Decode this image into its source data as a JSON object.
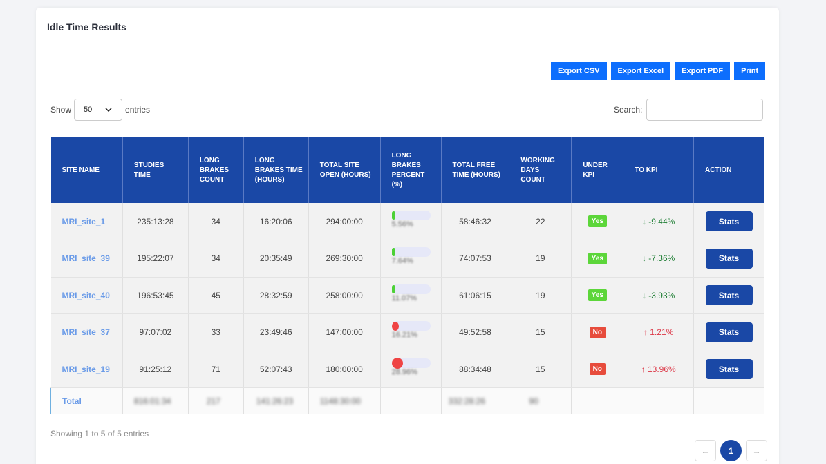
{
  "title": "Idle Time Results",
  "export_buttons": [
    "Export CSV",
    "Export Excel",
    "Export PDF",
    "Print"
  ],
  "length": {
    "show_label": "Show",
    "value": "50",
    "entries_label": "entries"
  },
  "search": {
    "label": "Search:",
    "placeholder": ""
  },
  "columns": [
    "SITE NAME",
    "STUDIES TIME",
    "LONG BRAKES COUNT",
    "LONG BRAKES TIME (HOURS)",
    "TOTAL SITE OPEN (HOURS)",
    "LONG BRAKES PERCENT (%)",
    "TOTAL FREE TIME (HOURS)",
    "WORKING DAYS COUNT",
    "UNDER KPI",
    "TO KPI",
    "ACTION"
  ],
  "rows": [
    {
      "site": "MRI_site_1",
      "studies": "235:13:28",
      "lb_count": "34",
      "lb_time": "16:20:06",
      "open": "294:00:00",
      "pct": "5.56%",
      "pct_color": "green",
      "free": "58:46:32",
      "days": "22",
      "under": "Yes",
      "kpi_arrow": "↓",
      "kpi": "-9.44%",
      "action": "Stats"
    },
    {
      "site": "MRI_site_39",
      "studies": "195:22:07",
      "lb_count": "34",
      "lb_time": "20:35:49",
      "open": "269:30:00",
      "pct": "7.64%",
      "pct_color": "green",
      "free": "74:07:53",
      "days": "19",
      "under": "Yes",
      "kpi_arrow": "↓",
      "kpi": "-7.36%",
      "action": "Stats"
    },
    {
      "site": "MRI_site_40",
      "studies": "196:53:45",
      "lb_count": "45",
      "lb_time": "28:32:59",
      "open": "258:00:00",
      "pct": "11.07%",
      "pct_color": "green",
      "free": "61:06:15",
      "days": "19",
      "under": "Yes",
      "kpi_arrow": "↓",
      "kpi": "-3.93%",
      "action": "Stats"
    },
    {
      "site": "MRI_site_37",
      "studies": "97:07:02",
      "lb_count": "33",
      "lb_time": "23:49:46",
      "open": "147:00:00",
      "pct": "16.21%",
      "pct_color": "red",
      "free": "49:52:58",
      "days": "15",
      "under": "No",
      "kpi_arrow": "↑",
      "kpi": "1.21%",
      "action": "Stats"
    },
    {
      "site": "MRI_site_19",
      "studies": "91:25:12",
      "lb_count": "71",
      "lb_time": "52:07:43",
      "open": "180:00:00",
      "pct": "28.96%",
      "pct_color": "red",
      "free": "88:34:48",
      "days": "15",
      "under": "No",
      "kpi_arrow": "↑",
      "kpi": "13.96%",
      "action": "Stats"
    }
  ],
  "total": {
    "label": "Total",
    "studies": "816:01:34",
    "lb_count": "217",
    "lb_time": "141:26:23",
    "open": "1148:30:00",
    "free": "332:28:26",
    "days": "90"
  },
  "info": "Showing 1 to 5 of 5 entries",
  "pager": {
    "prev": "←",
    "current": "1",
    "next": "→"
  }
}
